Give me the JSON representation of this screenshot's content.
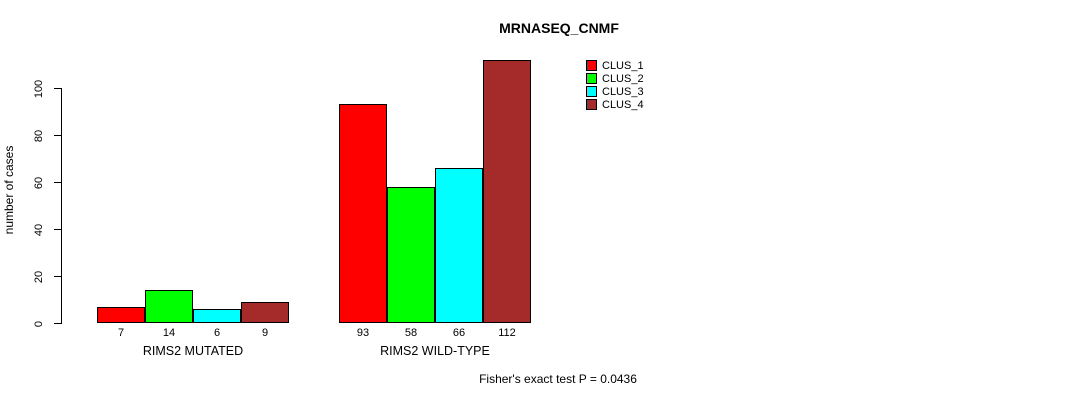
{
  "title": "MRNASEQ_CNMF",
  "footer": "Fisher's exact test P = 0.0436",
  "chart_data": {
    "type": "bar",
    "title": "MRNASEQ_CNMF",
    "categories": [
      "RIMS2 MUTATED",
      "RIMS2 WILD-TYPE"
    ],
    "series": [
      {
        "name": "CLUS_1",
        "color": "#FF0000",
        "values": [
          7,
          93
        ]
      },
      {
        "name": "CLUS_2",
        "color": "#00FF00",
        "values": [
          14,
          58
        ]
      },
      {
        "name": "CLUS_3",
        "color": "#00FFFF",
        "values": [
          6,
          66
        ]
      },
      {
        "name": "CLUS_4",
        "color": "#A52A2A",
        "values": [
          9,
          112
        ]
      }
    ],
    "bar_value_labels": [
      [
        "7",
        "14",
        "6",
        "9"
      ],
      [
        "93",
        "58",
        "66",
        "112"
      ]
    ],
    "xlabel": "",
    "ylabel": "number of cases",
    "yticks": [
      0,
      20,
      40,
      60,
      80,
      100
    ],
    "ylim": [
      0,
      113
    ],
    "grid": false,
    "legend_position": "top-right",
    "annotation": "Fisher's exact test P = 0.0436"
  }
}
